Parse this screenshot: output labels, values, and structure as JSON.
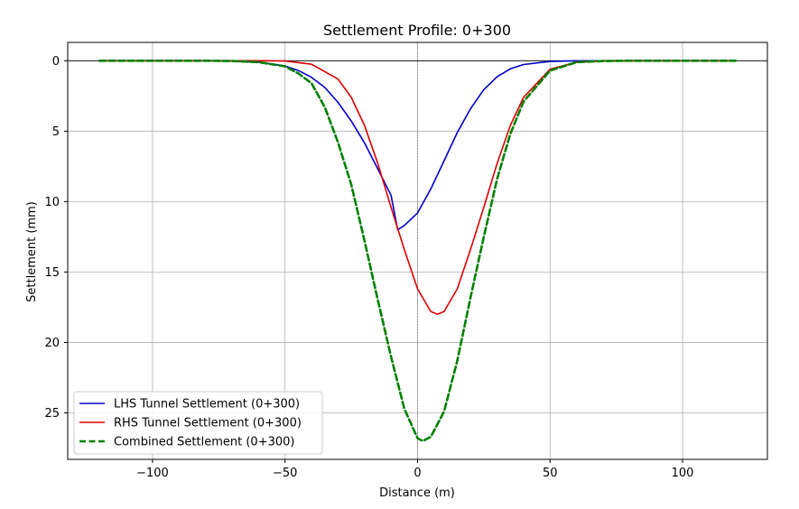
{
  "chart_data": {
    "type": "line",
    "title": "Settlement Profile: 0+300",
    "xlabel": "Distance (m)",
    "ylabel": "Settlement (mm)",
    "xlim": [
      -132,
      132
    ],
    "ylim": [
      -1.3,
      28.3
    ],
    "y_inverted": true,
    "x_ticks": [
      -100,
      -50,
      0,
      50,
      100
    ],
    "x_tick_labels": [
      "−100",
      "−50",
      "0",
      "50",
      "100"
    ],
    "y_ticks": [
      0,
      5,
      10,
      15,
      20,
      25
    ],
    "y_tick_labels": [
      "0",
      "5",
      "10",
      "15",
      "20",
      "25"
    ],
    "grid": true,
    "legend_position": "lower-left",
    "reference_lines": [
      {
        "axis": "y",
        "value": 0,
        "style": "solid",
        "color": "#000000"
      },
      {
        "axis": "x",
        "value": 0,
        "style": "dotted",
        "color": "#808080"
      }
    ],
    "series": [
      {
        "name": "LHS Tunnel Settlement (0+300)",
        "color": "#0000cc",
        "dash": "solid",
        "x": [
          -120,
          -80,
          -70,
          -60,
          -50,
          -45,
          -40,
          -35,
          -30,
          -25,
          -20,
          -15,
          -10,
          -7.5,
          -5,
          0,
          5,
          10,
          15,
          20,
          25,
          30,
          35,
          40,
          50,
          60,
          80,
          120
        ],
        "y": [
          0,
          0,
          0.02,
          0.1,
          0.37,
          0.69,
          1.18,
          1.9,
          2.96,
          4.28,
          5.84,
          7.69,
          9.55,
          12.0,
          11.7,
          10.8,
          9.1,
          7.1,
          5.1,
          3.4,
          2.05,
          1.14,
          0.58,
          0.27,
          0.05,
          0.01,
          0,
          0
        ]
      },
      {
        "name": "RHS Tunnel Settlement (0+300)",
        "color": "#dd0000",
        "dash": "solid",
        "x": [
          -120,
          -60,
          -50,
          -40,
          -30,
          -25,
          -20,
          -15,
          -10,
          -5,
          0,
          5,
          7.5,
          10,
          15,
          20,
          25,
          30,
          35,
          40,
          50,
          60,
          70,
          120
        ],
        "y": [
          0,
          0,
          0.02,
          0.25,
          1.3,
          2.6,
          4.6,
          7.3,
          10.4,
          13.4,
          16.2,
          17.8,
          18.0,
          17.8,
          16.2,
          13.4,
          10.4,
          7.3,
          4.6,
          2.6,
          0.6,
          0.1,
          0.01,
          0
        ]
      },
      {
        "name": "Combined Settlement (0+300)",
        "color": "#008000",
        "dash": "dashed",
        "x": [
          -120,
          -80,
          -70,
          -60,
          -50,
          -45,
          -40,
          -35,
          -30,
          -25,
          -20,
          -15,
          -10,
          -5,
          0,
          2,
          5,
          10,
          15,
          20,
          25,
          30,
          35,
          40,
          50,
          60,
          70,
          80,
          120
        ],
        "y": [
          0,
          0,
          0.02,
          0.1,
          0.4,
          0.9,
          1.6,
          3.3,
          5.8,
          8.8,
          12.8,
          17.0,
          21.0,
          24.7,
          26.8,
          27.0,
          26.7,
          24.9,
          21.3,
          16.8,
          12.5,
          8.4,
          5.2,
          2.9,
          0.7,
          0.1,
          0.02,
          0,
          0
        ]
      }
    ]
  }
}
